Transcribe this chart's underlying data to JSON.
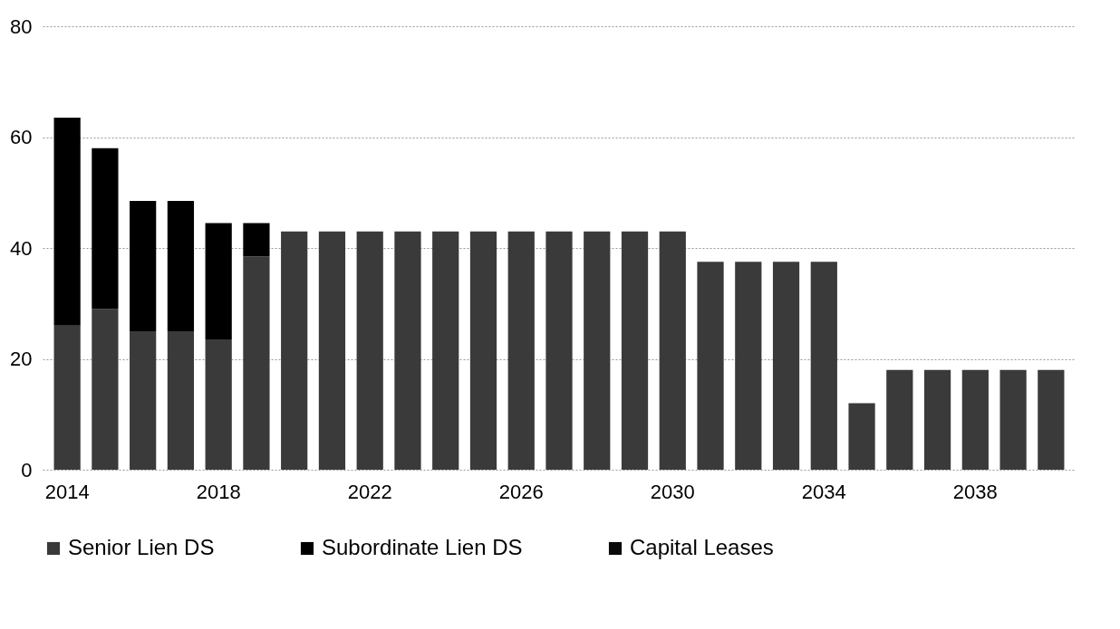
{
  "chart_data": {
    "type": "bar",
    "stacked": true,
    "categories": [
      "2014",
      null,
      null,
      null,
      "2018",
      null,
      null,
      null,
      "2022",
      null,
      null,
      null,
      "2026",
      null,
      null,
      null,
      "2030",
      null,
      null,
      null,
      "2034",
      null,
      null,
      null,
      "2038",
      null,
      null
    ],
    "series": [
      {
        "name": "Senior Lien DS",
        "color": "#3a3a3a",
        "values": [
          26,
          29,
          25,
          25,
          23.5,
          38.5,
          43,
          43,
          43,
          43,
          43,
          43,
          43,
          43,
          43,
          43,
          43,
          37.5,
          37.5,
          37.5,
          37.5,
          12,
          18,
          18,
          18,
          18,
          18
        ]
      },
      {
        "name": "Subordinate Lien DS",
        "color": "#000000",
        "values": [
          37.5,
          29,
          23.5,
          23.5,
          21,
          6,
          null,
          null,
          null,
          null,
          null,
          null,
          null,
          null,
          null,
          null,
          null,
          null,
          null,
          null,
          null,
          null,
          null,
          null,
          null,
          null,
          null
        ]
      },
      {
        "name": "Capital Leases",
        "color": "#0a0a0a",
        "values": [
          null,
          null,
          null,
          null,
          null,
          null,
          null,
          null,
          null,
          null,
          null,
          null,
          null,
          null,
          null,
          null,
          null,
          null,
          null,
          null,
          null,
          null,
          null,
          null,
          null,
          null,
          null
        ]
      }
    ],
    "ylim": [
      0,
      80
    ],
    "yticks": [
      0,
      20,
      40,
      60,
      80
    ],
    "grid": "y",
    "legend": "bottom"
  }
}
